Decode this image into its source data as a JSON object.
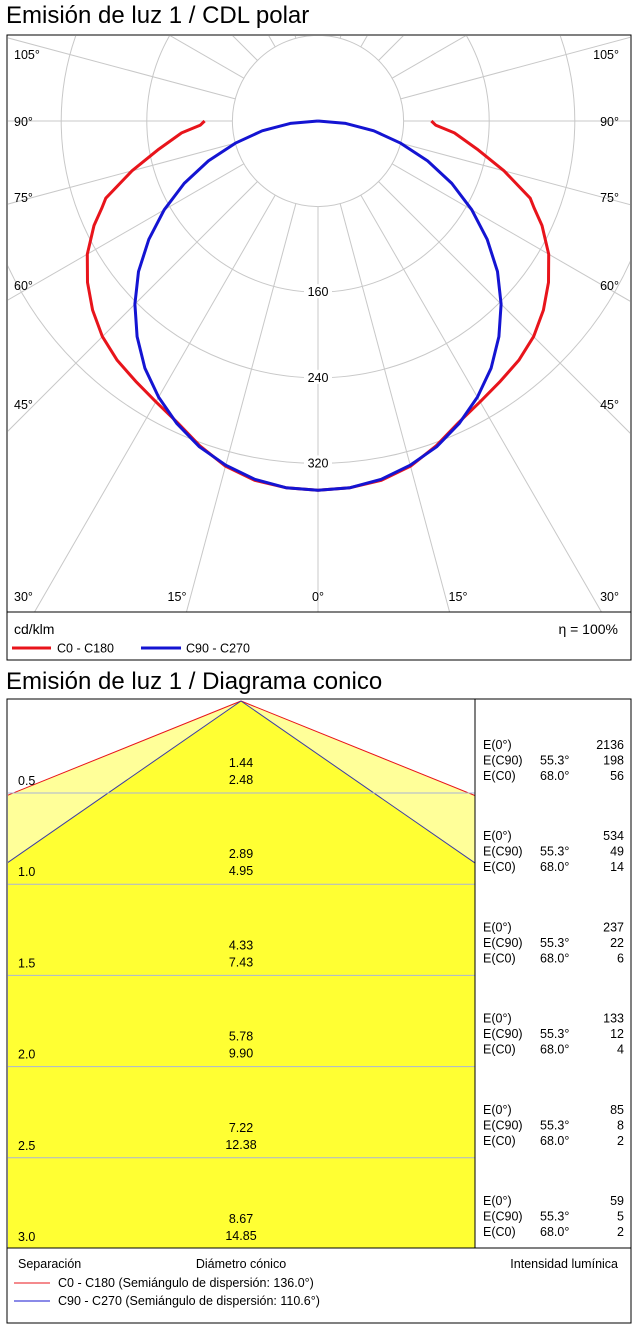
{
  "polar": {
    "title": "Emisión de luz 1 / CDL polar",
    "unit": "cd/klm",
    "efficiency": "η = 100%",
    "angle_labels_left": [
      "105°",
      "90°",
      "75°",
      "60°",
      "45°",
      "30°"
    ],
    "angle_labels_right": [
      "105°",
      "90°",
      "75°",
      "60°",
      "45°",
      "30°"
    ],
    "bottom_labels": [
      "15°",
      "0°",
      "15°"
    ],
    "radial_labels": [
      "160",
      "240",
      "320"
    ],
    "legend": [
      {
        "label": "C0 - C180",
        "color": "#e8141b"
      },
      {
        "label": "C90 - C270",
        "color": "#1414d2"
      }
    ]
  },
  "chart_data": [
    {
      "type": "polar",
      "title": "Emisión de luz 1 / CDL polar",
      "unit": "cd/klm",
      "rings": [
        80,
        160,
        240,
        320
      ],
      "series": [
        {
          "name": "C0 - C180",
          "color": "#e8141b",
          "theta": [
            0,
            5,
            10,
            15,
            20,
            25,
            30,
            35,
            40,
            45,
            50,
            55,
            60,
            65,
            68,
            70,
            75,
            80,
            85,
            88,
            90
          ],
          "values": [
            345,
            344,
            341,
            334,
            323,
            311,
            303,
            297,
            292,
            285,
            275,
            263,
            249,
            231,
            218,
            211,
            180,
            151,
            128,
            110,
            106
          ]
        },
        {
          "name": "C90 - C270",
          "color": "#1414d2",
          "theta": [
            0,
            5,
            10,
            15,
            20,
            25,
            30,
            35,
            40,
            45,
            50,
            55,
            60,
            65,
            70,
            75,
            80,
            85,
            90
          ],
          "values": [
            345,
            344,
            340,
            333,
            324,
            312,
            298,
            282,
            263,
            242,
            219,
            193,
            166,
            138,
            109,
            80,
            53,
            26,
            0
          ]
        }
      ]
    },
    {
      "type": "table",
      "title": "Emisión de luz 1 / Diagrama conico",
      "columns": [
        "Separación",
        "Diámetro cónico",
        "Intensidad lumínica"
      ],
      "rows": [
        {
          "sep": "0.5",
          "d1": "1.44",
          "d2": "2.48",
          "e0": "2136",
          "e90": "198",
          "ec0": "56"
        },
        {
          "sep": "1.0",
          "d1": "2.89",
          "d2": "4.95",
          "e0": "534",
          "e90": "49",
          "ec0": "14"
        },
        {
          "sep": "1.5",
          "d1": "4.33",
          "d2": "7.43",
          "e0": "237",
          "e90": "22",
          "ec0": "6"
        },
        {
          "sep": "2.0",
          "d1": "5.78",
          "d2": "9.90",
          "e0": "133",
          "e90": "12",
          "ec0": "4"
        },
        {
          "sep": "2.5",
          "d1": "7.22",
          "d2": "12.38",
          "e0": "85",
          "e90": "8",
          "ec0": "2"
        },
        {
          "sep": "3.0",
          "d1": "8.67",
          "d2": "14.85",
          "e0": "59",
          "e90": "5",
          "ec0": "2"
        }
      ],
      "half_angles": {
        "C0 - C180": 68.0,
        "C90 - C270": 55.3
      }
    }
  ],
  "conic": {
    "title": "Emisión de luz 1 / Diagrama conico",
    "labels": {
      "e0": "E(0°)",
      "e90": "E(C90)",
      "ec0": "E(C0)",
      "a90": "55.3°",
      "a0": "68.0°"
    },
    "footer": {
      "col1": "Separación",
      "col2": "Diámetro cónico",
      "col3": "Intensidad lumínica"
    },
    "legend": [
      {
        "label": "C0 - C180 (Semiángulo de dispersión: 136.0°)",
        "color": "#e8141b"
      },
      {
        "label": "C90 - C270 (Semiángulo de dispersión: 110.6°)",
        "color": "#1414d2"
      }
    ],
    "colors": {
      "fill": "#ffff33",
      "light": "#ffff99"
    }
  }
}
